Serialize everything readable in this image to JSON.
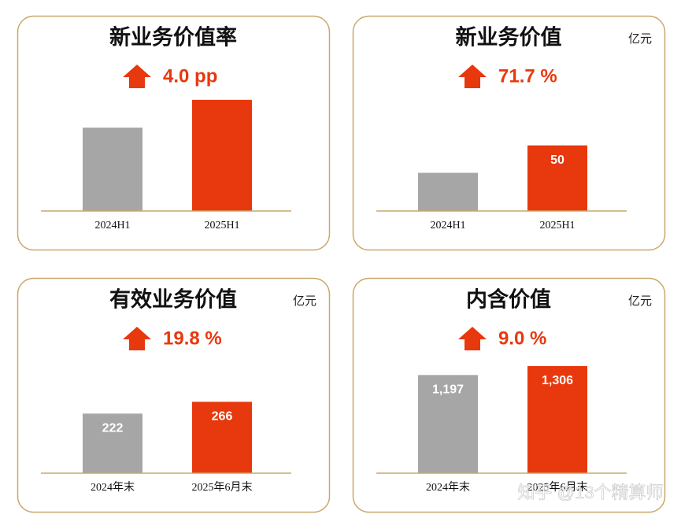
{
  "chart_data": [
    {
      "type": "bar",
      "title": "新业务价值率",
      "change": "4.0 pp",
      "categories": [
        "2024H1",
        "2025H1"
      ],
      "values": [
        12,
        16
      ],
      "colors": [
        "#a6a6a6",
        "#e8380d"
      ],
      "ylim": [
        0,
        17
      ]
    },
    {
      "type": "bar",
      "title": "新业务价值",
      "unit": "亿元",
      "change": "71.7 %",
      "categories": [
        "2024H1",
        "2025H1"
      ],
      "values": [
        29.1,
        50
      ],
      "value_labels": [
        null,
        "50"
      ],
      "colors": [
        "#a6a6a6",
        "#e8380d"
      ],
      "ylim": [
        0,
        90
      ]
    },
    {
      "type": "bar",
      "title": "有效业务价值",
      "unit": "亿元",
      "change": "19.8 %",
      "categories": [
        "2024年末",
        "2025年6月末"
      ],
      "values": [
        222,
        266
      ],
      "value_labels": [
        "222",
        "266"
      ],
      "colors": [
        "#a6a6a6",
        "#e8380d"
      ],
      "ylim": [
        0,
        440
      ]
    },
    {
      "type": "bar",
      "title": "内含价值",
      "unit": "亿元",
      "change": "9.0 %",
      "categories": [
        "2024年末",
        "2025年6月末"
      ],
      "values": [
        1197,
        1306
      ],
      "value_labels": [
        "1,197",
        "1,306"
      ],
      "colors": [
        "#a6a6a6",
        "#e8380d"
      ],
      "ylim": [
        0,
        1440
      ]
    }
  ],
  "watermark": "知乎 @13个精算师"
}
